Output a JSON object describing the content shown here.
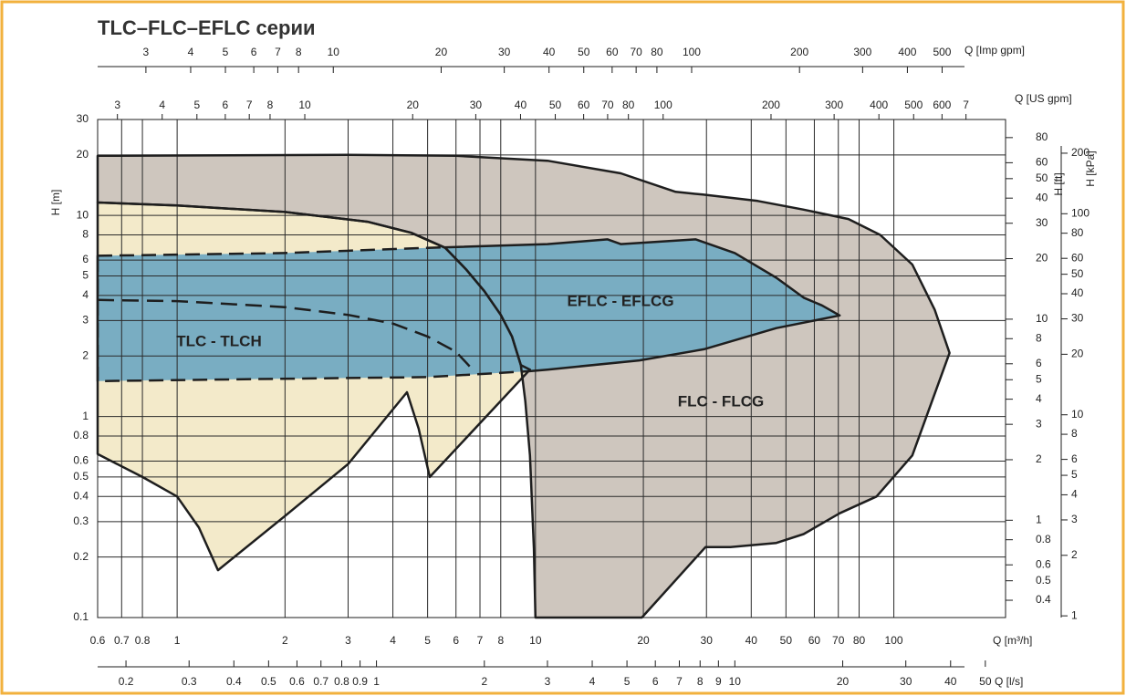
{
  "chart_data": {
    "type": "range",
    "title": "TLC–FLC–EFLC серии",
    "log_scale": true,
    "grid": true,
    "outline_color": "#1e1e1e",
    "x_axes": [
      {
        "label": "Q [m³/h]",
        "position": "bottom",
        "lim": [
          0.6,
          205
        ],
        "ticks": [
          0.6,
          0.7,
          0.8,
          1,
          2,
          3,
          4,
          5,
          6,
          7,
          8,
          10,
          20,
          30,
          40,
          50,
          60,
          70,
          80,
          100
        ]
      },
      {
        "label": "Q [US gpm]",
        "position": "top",
        "lim": [
          2.642,
          902.6
        ],
        "ticks": [
          3,
          4,
          5,
          6,
          7,
          8,
          10,
          20,
          30,
          40,
          50,
          60,
          70,
          80,
          100,
          200,
          300,
          400,
          500,
          600,
          {
            "value": 700,
            "label": "7"
          }
        ]
      },
      {
        "label": "Q [Imp gpm]",
        "position": "top-outer",
        "lim": [
          2.2,
          751.6
        ],
        "ticks": [
          3,
          4,
          5,
          6,
          7,
          8,
          10,
          20,
          30,
          40,
          50,
          60,
          70,
          80,
          100,
          200,
          300,
          400,
          500
        ]
      },
      {
        "label": "Q [l/s]",
        "position": "bottom-outer",
        "lim": [
          0.1667,
          56.94
        ],
        "ticks": [
          0.2,
          0.3,
          0.4,
          0.5,
          0.6,
          0.7,
          0.8,
          0.9,
          1,
          2,
          3,
          4,
          5,
          6,
          7,
          8,
          9,
          10,
          20,
          30,
          40,
          50
        ]
      }
    ],
    "y_axes": [
      {
        "label": "H [m]",
        "position": "left",
        "lim": [
          0.1,
          30
        ],
        "ticks": [
          0.1,
          0.2,
          0.3,
          0.4,
          0.5,
          0.6,
          0.8,
          1,
          2,
          3,
          4,
          5,
          6,
          8,
          10,
          20,
          30
        ]
      },
      {
        "label": "H [ft]",
        "position": "right",
        "lim": [
          0.3281,
          98.43
        ],
        "ticks": [
          0.4,
          0.5,
          0.6,
          0.8,
          1,
          2,
          3,
          4,
          5,
          6,
          8,
          10,
          20,
          30,
          40,
          50,
          60,
          80
        ]
      },
      {
        "label": "H [kPa]",
        "position": "right-outer",
        "lim": [
          0.9807,
          294.2
        ],
        "ticks": [
          1,
          2,
          3,
          4,
          5,
          6,
          8,
          10,
          20,
          30,
          40,
          50,
          60,
          80,
          100,
          200
        ]
      }
    ],
    "regions": [
      {
        "name": "FLC - FLCG",
        "color": "#cec6be",
        "x": [
          0.6,
          3,
          6,
          10.8,
          17.3,
          24.6,
          29.3,
          41.7,
          55.8,
          74.7,
          91.6,
          112.6,
          130,
          143,
          112.6,
          89.5,
          70.6,
          56,
          47,
          35,
          29.8,
          19.8,
          10,
          9.9,
          9.65,
          9.37,
          9.1,
          8.6,
          8,
          7.2,
          6.4,
          5.6,
          4.5,
          3.4,
          2,
          1,
          0.6
        ],
        "y": [
          19.8,
          20,
          19.8,
          18.7,
          16.2,
          13.1,
          12.7,
          11.8,
          10.7,
          9.6,
          8,
          5.7,
          3.4,
          2.07,
          0.64,
          0.4,
          0.33,
          0.26,
          0.235,
          0.224,
          0.224,
          0.1,
          0.1,
          0.22,
          0.64,
          1.19,
          1.8,
          2.5,
          3.2,
          4.2,
          5.4,
          6.9,
          8.2,
          9.3,
          10.4,
          11.2,
          11.6
        ]
      },
      {
        "name": "TLC - TLCH",
        "color": "#f3eaca",
        "x": [
          0.6,
          1,
          2,
          3.4,
          4.5,
          5.6,
          6.4,
          7.2,
          8,
          8.6,
          9.1,
          9.65,
          5.07,
          4.72,
          4.38,
          3,
          2,
          1.3,
          1.15,
          1,
          0.8,
          0.6
        ],
        "y": [
          11.6,
          11.2,
          10.4,
          9.3,
          8.2,
          6.9,
          5.4,
          4.2,
          3.2,
          2.5,
          1.8,
          1.71,
          0.5,
          0.87,
          1.32,
          0.58,
          0.32,
          0.172,
          0.28,
          0.4,
          0.5,
          0.65
        ]
      },
      {
        "name": "EFLC - EFLCG",
        "color": "#79adc2",
        "x": [
          0.6,
          2,
          5,
          10.8,
          15.9,
          17.3,
          28,
          36,
          47,
          56,
          63,
          70.6,
          47,
          29.5,
          19.5,
          10.8,
          9.65,
          5,
          1.9,
          0.6
        ],
        "y": [
          6.3,
          6.5,
          6.9,
          7.2,
          7.6,
          7.2,
          7.6,
          6.5,
          4.9,
          3.9,
          3.57,
          3.18,
          2.75,
          2.16,
          1.9,
          1.71,
          1.68,
          1.57,
          1.54,
          1.5
        ]
      }
    ],
    "lines": [
      {
        "style": "dashed",
        "x": [
          0.6,
          1,
          2,
          3,
          4,
          5,
          6,
          6.6
        ],
        "y": [
          3.8,
          3.75,
          3.5,
          3.2,
          2.9,
          2.5,
          2.1,
          1.75
        ]
      }
    ]
  }
}
